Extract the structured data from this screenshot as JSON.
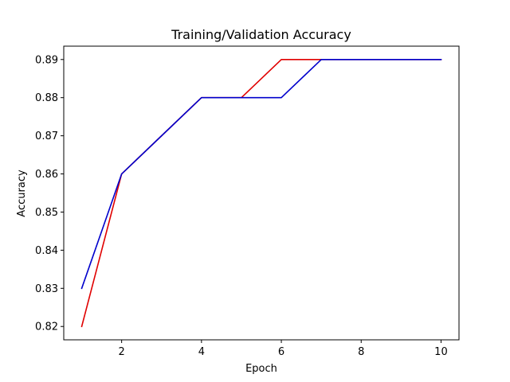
{
  "chart_data": {
    "type": "line",
    "title": "Training/Validation Accuracy",
    "xlabel": "Epoch",
    "ylabel": "Accuracy",
    "x": [
      1,
      2,
      3,
      4,
      5,
      6,
      7,
      8,
      9,
      10
    ],
    "series": [
      {
        "values": [
          0.82,
          0.86,
          0.87,
          0.88,
          0.88,
          0.89,
          0.89,
          0.89,
          0.89,
          0.89
        ],
        "color": "#e00000"
      },
      {
        "values": [
          0.83,
          0.86,
          0.87,
          0.88,
          0.88,
          0.88,
          0.89,
          0.89,
          0.89,
          0.89
        ],
        "color": "#0000cc"
      }
    ],
    "xlim": [
      0.55,
      10.45
    ],
    "ylim": [
      0.8165,
      0.8935
    ],
    "xticks": [
      2,
      4,
      6,
      8,
      10
    ],
    "xtick_labels": [
      "2",
      "4",
      "6",
      "8",
      "10"
    ],
    "yticks": [
      0.82,
      0.83,
      0.84,
      0.85,
      0.86,
      0.87,
      0.88,
      0.89
    ],
    "ytick_labels": [
      "0.82",
      "0.83",
      "0.84",
      "0.85",
      "0.86",
      "0.87",
      "0.88",
      "0.89"
    ],
    "grid": false,
    "legend": "none"
  }
}
